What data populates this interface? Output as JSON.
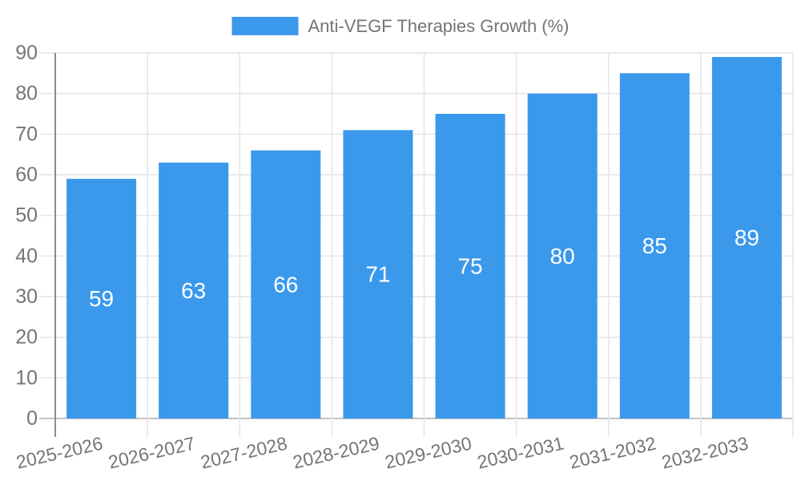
{
  "legend": {
    "label": "Anti-VEGF Therapies Growth (%)"
  },
  "colors": {
    "bar": "#3B99EC",
    "grid": "#E7E7E7",
    "axis_y_line": "#8C8C8C",
    "axis_x_line": "#C2C2C2",
    "tick_text": "#757575",
    "value_label_text": "#FFFFFF",
    "background": "#FFFFFF"
  },
  "chart_data": {
    "type": "bar",
    "title": "Anti-VEGF Therapies Growth (%)",
    "series_name": "Anti-VEGF Therapies Growth (%)",
    "categories": [
      "2025-2026",
      "2026-2027",
      "2027-2028",
      "2028-2029",
      "2029-2030",
      "2030-2031",
      "2031-2032",
      "2032-2033"
    ],
    "values": [
      59,
      63,
      66,
      71,
      75,
      80,
      85,
      89
    ],
    "xlabel": "",
    "ylabel": "",
    "ylim": [
      0,
      90
    ],
    "yticks": [
      0,
      10,
      20,
      30,
      40,
      50,
      60,
      70,
      80,
      90
    ],
    "grid": "both",
    "legend_position": "top-center",
    "value_labels": "inside-center-white",
    "x_tick_label_rotation_deg": -13
  }
}
